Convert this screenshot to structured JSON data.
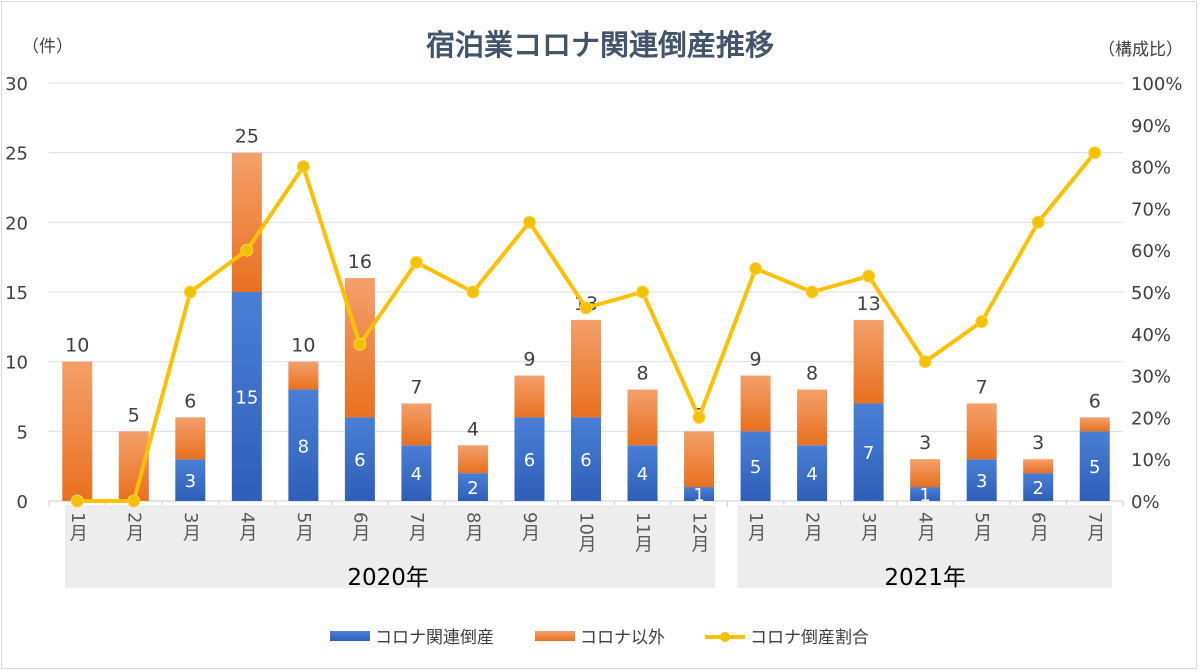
{
  "chart_data": {
    "type": "bar",
    "title": "宿泊業コロナ関連倒産推移",
    "ylabel": "（件）",
    "y2label": "（構成比）",
    "ylim": [
      0,
      30
    ],
    "yticks": [
      0,
      5,
      10,
      15,
      20,
      25,
      30
    ],
    "y2lim": [
      0,
      100
    ],
    "y2ticks": [
      "0%",
      "10%",
      "20%",
      "30%",
      "40%",
      "50%",
      "60%",
      "70%",
      "80%",
      "90%",
      "100%"
    ],
    "categories": [
      "1月",
      "2月",
      "3月",
      "4月",
      "5月",
      "6月",
      "7月",
      "8月",
      "9月",
      "10月",
      "11月",
      "12月",
      "1月",
      "2月",
      "3月",
      "4月",
      "5月",
      "6月",
      "7月"
    ],
    "groups": [
      {
        "label": "2020年",
        "count": 12
      },
      {
        "label": "2021年",
        "count": 7
      }
    ],
    "totals": [
      10,
      5,
      6,
      25,
      10,
      16,
      7,
      4,
      9,
      13,
      8,
      5,
      9,
      8,
      13,
      3,
      7,
      3,
      6
    ],
    "series": [
      {
        "name": "コロナ関連倒産",
        "type": "bar",
        "color": "#3a6cc6",
        "values": [
          0,
          0,
          3,
          15,
          8,
          6,
          4,
          2,
          6,
          6,
          4,
          1,
          5,
          4,
          7,
          1,
          3,
          2,
          5
        ]
      },
      {
        "name": "コロナ以外",
        "type": "bar",
        "color": "#ed7d31",
        "values": [
          10,
          5,
          3,
          10,
          2,
          10,
          3,
          2,
          3,
          7,
          4,
          4,
          4,
          4,
          6,
          2,
          4,
          1,
          1
        ]
      },
      {
        "name": "コロナ倒産割合",
        "type": "line",
        "axis": "right",
        "color": "#ffc000",
        "values": [
          0,
          0,
          50,
          60,
          80,
          37.5,
          57.1,
          50,
          66.7,
          46.2,
          50,
          20,
          55.6,
          50,
          53.8,
          33.3,
          42.9,
          66.7,
          83.3
        ]
      }
    ],
    "stacked": true,
    "grid": true,
    "legend": "bottom"
  }
}
